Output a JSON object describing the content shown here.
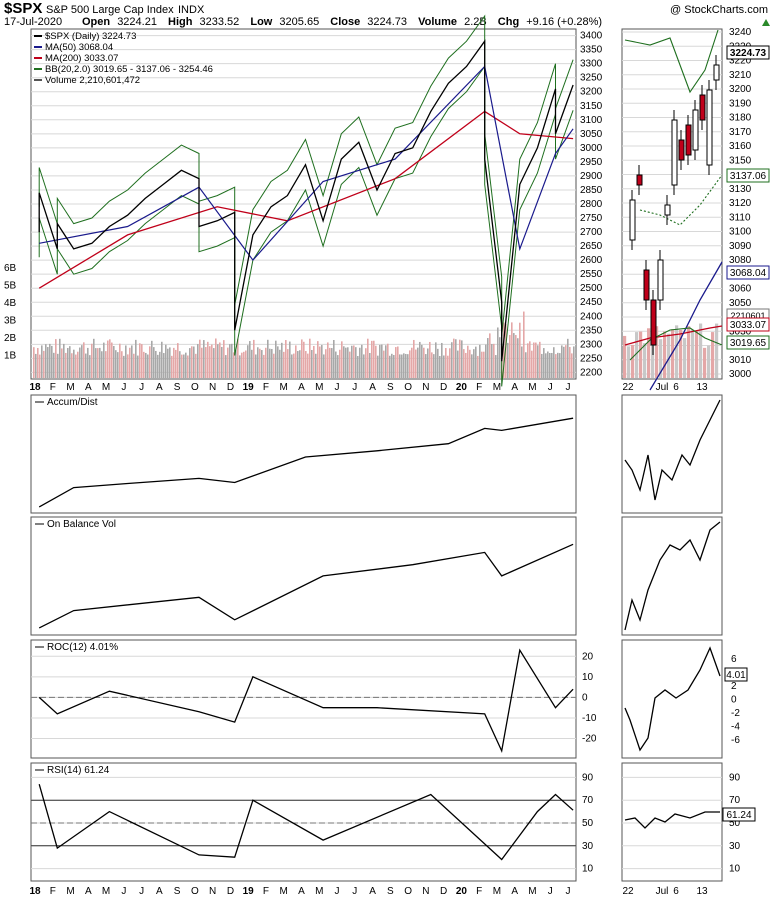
{
  "header": {
    "symbol": "$SPX",
    "name": "S&P 500 Large Cap Index",
    "exchange": "INDX",
    "watermark": "@ StockCharts.com",
    "date": "17-Jul-2020",
    "open_label": "Open",
    "open": "3224.21",
    "high_label": "High",
    "high": "3233.52",
    "low_label": "Low",
    "low": "3205.65",
    "close_label": "Close",
    "close": "3224.73",
    "volume_label": "Volume",
    "volume": "2.2B",
    "chg_label": "Chg",
    "chg": "+9.16 (+0.28%)"
  },
  "legend": [
    {
      "text": "$SPX (Daily) 3224.73",
      "color": "#000000"
    },
    {
      "text": "MA(50) 3068.04",
      "color": "#1a1a8c"
    },
    {
      "text": "MA(200) 3033.07",
      "color": "#c0001a"
    },
    {
      "text": "BB(20,2.0) 3019.65 - 3137.06 - 3254.46",
      "color": "#1f6f1f"
    },
    {
      "text": "Volume 2,210,601,472",
      "color": "#555555"
    }
  ],
  "x_labels": [
    "18",
    "F",
    "M",
    "A",
    "M",
    "J",
    "J",
    "A",
    "S",
    "O",
    "N",
    "D",
    "19",
    "F",
    "M",
    "A",
    "M",
    "J",
    "J",
    "A",
    "S",
    "O",
    "N",
    "D",
    "20",
    "F",
    "M",
    "A",
    "M",
    "J",
    "J"
  ],
  "zoom_x_labels": [
    "22",
    "Jul",
    "6",
    "13"
  ],
  "right_badges": {
    "close": "3224.73",
    "bb_mid": "3137.06",
    "ma50": "3068.04",
    "ma200": "3033.07",
    "bb_low": "3019.65",
    "vol_badge": "2210601"
  },
  "panels": {
    "price_y_ticks": [
      "3400",
      "3350",
      "3300",
      "3250",
      "3200",
      "3150",
      "3100",
      "3050",
      "3000",
      "2950",
      "2900",
      "2850",
      "2800",
      "2750",
      "2700",
      "2650",
      "2600",
      "2550",
      "2500",
      "2450",
      "2400",
      "2350",
      "2300",
      "2250",
      "2200"
    ],
    "volume_ticks": [
      "6B",
      "5B",
      "4B",
      "3B",
      "2B",
      "1B"
    ],
    "zoom_y_ticks": [
      "3240",
      "3230",
      "3220",
      "3210",
      "3200",
      "3190",
      "3180",
      "3170",
      "3160",
      "3150",
      "3140",
      "3130",
      "3120",
      "3110",
      "3100",
      "3090",
      "3080",
      "3070",
      "3060",
      "3050",
      "3040",
      "3030",
      "3020",
      "3010",
      "3000"
    ],
    "adl_title": "Accum/Dist",
    "obv_title": "On Balance Vol",
    "roc_title": "ROC(12) 4.01%",
    "roc_ticks": [
      "20",
      "10",
      "0",
      "-10",
      "-20"
    ],
    "roc_zoom_ticks": [
      "6",
      "4",
      "2",
      "0",
      "-2",
      "-4",
      "-6"
    ],
    "roc_badge": "4.01",
    "rsi_title": "RSI(14) 61.24",
    "rsi_ticks": [
      "90",
      "70",
      "50",
      "30",
      "10"
    ],
    "rsi_badge": "61.24"
  },
  "chart_data": {
    "type": "line",
    "title": "$SPX S&P 500 Large Cap Index",
    "series": [
      {
        "name": "$SPX (Daily)",
        "x": [
          "2018-01",
          "2018-01",
          "2018-02",
          "2018-02",
          "2018-03",
          "2018-04",
          "2018-05",
          "2018-06",
          "2018-07",
          "2018-08",
          "2018-09",
          "2018-10",
          "2018-10",
          "2018-11",
          "2018-12",
          "2018-12",
          "2019-01",
          "2019-02",
          "2019-03",
          "2019-04",
          "2019-05",
          "2019-06",
          "2019-07",
          "2019-08",
          "2019-09",
          "2019-10",
          "2019-11",
          "2019-12",
          "2020-01",
          "2020-02",
          "2020-02",
          "2020-03",
          "2020-03",
          "2020-04",
          "2020-05",
          "2020-06",
          "2020-06",
          "2020-07"
        ],
        "values": [
          2700,
          2840,
          2640,
          2730,
          2640,
          2660,
          2720,
          2760,
          2820,
          2870,
          2920,
          2890,
          2720,
          2740,
          2770,
          2350,
          2690,
          2790,
          2830,
          2940,
          2740,
          2960,
          3020,
          2850,
          2980,
          3000,
          3130,
          3230,
          3290,
          3380,
          2960,
          2450,
          2240,
          2870,
          3000,
          3210,
          3050,
          3224
        ]
      },
      {
        "name": "MA(50)",
        "x": [
          "2018-01",
          "2018-06",
          "2018-10",
          "2019-01",
          "2019-05",
          "2019-09",
          "2020-02",
          "2020-04",
          "2020-06",
          "2020-07"
        ],
        "values": [
          2660,
          2720,
          2860,
          2600,
          2880,
          2960,
          3290,
          2640,
          2980,
          3068
        ]
      },
      {
        "name": "MA(200)",
        "x": [
          "2018-01",
          "2018-06",
          "2018-11",
          "2019-03",
          "2019-09",
          "2020-02",
          "2020-04",
          "2020-07"
        ],
        "values": [
          2500,
          2690,
          2790,
          2740,
          2890,
          3130,
          3050,
          3033
        ]
      },
      {
        "name": "Accum/Dist",
        "x": [
          "2018-01",
          "2018-03",
          "2018-06",
          "2018-10",
          "2018-12",
          "2019-04",
          "2019-08",
          "2019-12",
          "2020-02",
          "2020-03",
          "2020-07"
        ],
        "values": [
          3,
          22,
          26,
          31,
          27,
          52,
          58,
          65,
          80,
          78,
          90
        ]
      },
      {
        "name": "On Balance Vol",
        "x": [
          "2018-01",
          "2018-03",
          "2018-10",
          "2018-12",
          "2019-05",
          "2019-10",
          "2020-02",
          "2020-03",
          "2020-07"
        ],
        "values": [
          4,
          21,
          34,
          12,
          55,
          66,
          78,
          55,
          86
        ]
      },
      {
        "name": "ROC(12)",
        "x": [
          "2018-01",
          "2018-02",
          "2018-05",
          "2018-10",
          "2018-12",
          "2019-01",
          "2019-05",
          "2019-08",
          "2020-02",
          "2020-03",
          "2020-04",
          "2020-06",
          "2020-07"
        ],
        "values": [
          0,
          -8,
          3,
          -7,
          -12,
          10,
          -5,
          -5,
          -8,
          -26,
          23,
          -5,
          4.01
        ]
      },
      {
        "name": "RSI(14)",
        "x": [
          "2018-01",
          "2018-02",
          "2018-05",
          "2018-10",
          "2018-12",
          "2019-01",
          "2019-05",
          "2019-11",
          "2020-03",
          "2020-05",
          "2020-06",
          "2020-07"
        ],
        "values": [
          84,
          28,
          60,
          22,
          20,
          70,
          35,
          75,
          18,
          60,
          75,
          61.24
        ]
      }
    ],
    "ylim": [
      2180,
      3420
    ],
    "grid": true,
    "legend": "top-left"
  }
}
